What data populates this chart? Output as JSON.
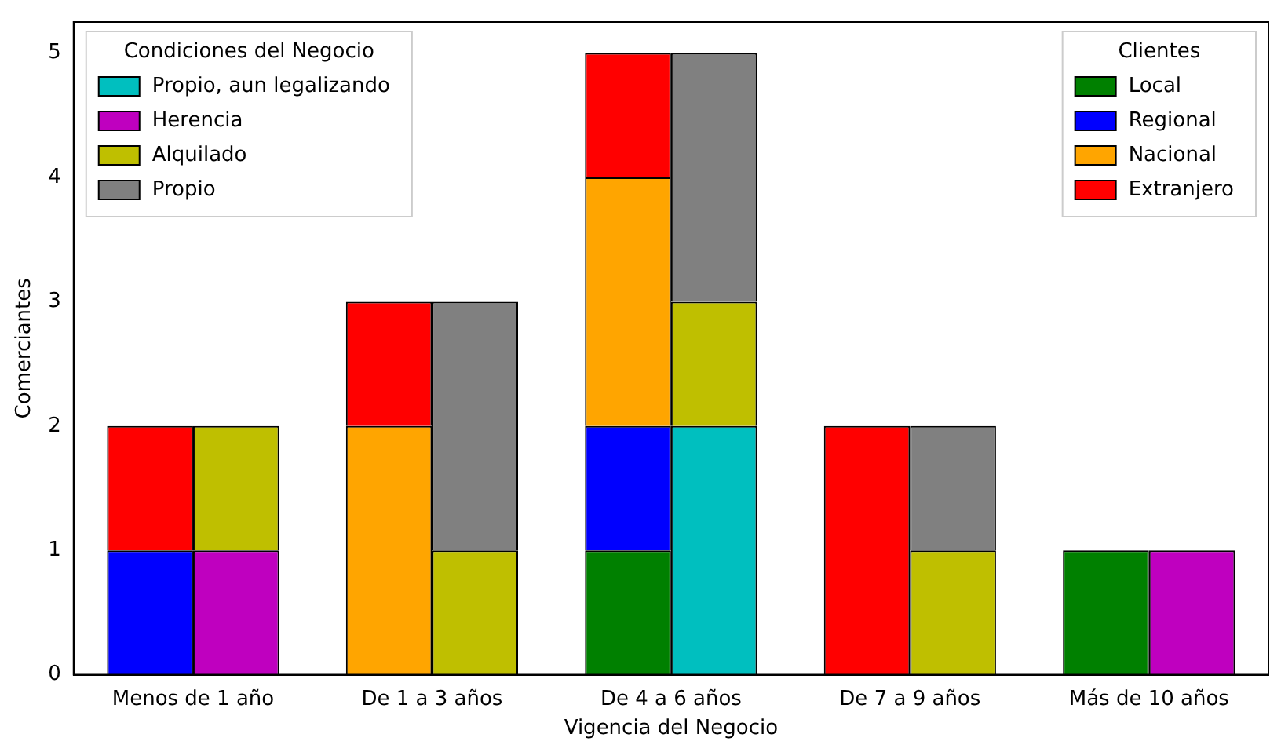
{
  "chart_data": {
    "type": "bar",
    "xlabel": "Vigencia del Negocio",
    "ylabel": "Comerciantes",
    "categories": [
      "Menos de 1 año",
      "De 1 a 3 años",
      "De 4 a 6 años",
      "De 7 a 9 años",
      "Más de 10 años"
    ],
    "ylim": [
      0,
      5.25
    ],
    "yticks": [
      0,
      1,
      2,
      3,
      4,
      5
    ],
    "grid": false,
    "legend_title": [
      "Clientes",
      "Condiciones del Negocio"
    ],
    "legend": [
      "top right",
      "top left"
    ],
    "series": [
      {
        "name": "Local",
        "color": "#008000",
        "base": [
          null,
          null,
          0,
          null,
          0
        ],
        "values": [
          null,
          null,
          1,
          null,
          1
        ]
      },
      {
        "name": "Regional",
        "color": "#0000ff",
        "base": [
          0,
          null,
          1,
          null,
          null
        ],
        "values": [
          1,
          null,
          1,
          null,
          null
        ]
      },
      {
        "name": "Nacional",
        "color": "#ffa500",
        "base": [
          null,
          0,
          2,
          null,
          null
        ],
        "values": [
          null,
          2,
          2,
          null,
          null
        ]
      },
      {
        "name": "Extranjero",
        "color": "#ff0000",
        "base": [
          1,
          2,
          4,
          0,
          null
        ],
        "values": [
          1,
          1,
          1,
          2,
          null
        ]
      },
      {
        "name": "Propio, aun legalizando",
        "color": "#00bfbf",
        "base": [
          null,
          null,
          0,
          null,
          null
        ],
        "values": [
          null,
          null,
          2,
          null,
          null
        ]
      },
      {
        "name": "Herencia",
        "color": "#bf00bf",
        "base": [
          0,
          null,
          null,
          null,
          0
        ],
        "values": [
          1,
          null,
          null,
          null,
          1
        ]
      },
      {
        "name": "Alquilado",
        "color": "#bfbf00",
        "base": [
          1,
          0,
          2,
          0,
          null
        ],
        "values": [
          1,
          1,
          1,
          1,
          null
        ]
      },
      {
        "name": "Propio",
        "color": "#808080",
        "base": [
          null,
          1,
          3,
          1,
          null
        ],
        "values": [
          null,
          2,
          2,
          1,
          null
        ]
      }
    ]
  }
}
